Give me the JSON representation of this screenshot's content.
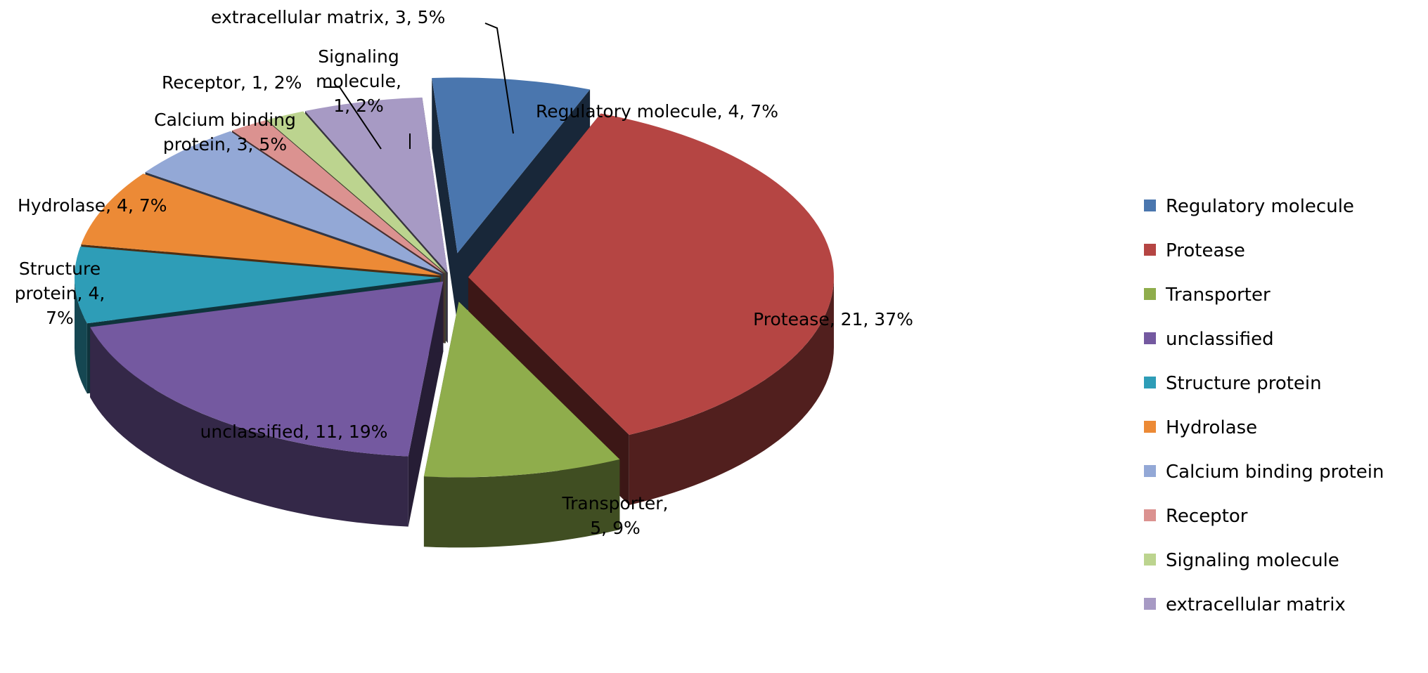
{
  "chart_data": {
    "type": "pie",
    "style": "3d-exploded",
    "title": "",
    "legend_position": "right",
    "slices": [
      {
        "name": "Regulatory molecule",
        "value": 4,
        "percent": "7%",
        "color": "#4a76ae",
        "label": [
          "Regulatory molecule, 4, 7%"
        ]
      },
      {
        "name": "Protease",
        "value": 21,
        "percent": "37%",
        "color": "#b54543",
        "label": [
          "Protease, 21, 37%"
        ]
      },
      {
        "name": "Transporter",
        "value": 5,
        "percent": "9%",
        "color": "#8fad4c",
        "label": [
          "Transporter,",
          "5, 9%"
        ]
      },
      {
        "name": "unclassified",
        "value": 11,
        "percent": "19%",
        "color": "#7459a0",
        "label": [
          "unclassified, 11, 19%"
        ]
      },
      {
        "name": "Structure protein",
        "value": 4,
        "percent": "7%",
        "color": "#2e9db7",
        "label": [
          "Structure",
          "protein, 4,",
          "7%"
        ]
      },
      {
        "name": "Hydrolase",
        "value": 4,
        "percent": "7%",
        "color": "#ec8a36",
        "label": [
          "Hydrolase, 4, 7%"
        ]
      },
      {
        "name": "Calcium binding protein",
        "value": 3,
        "percent": "5%",
        "color": "#93a8d6",
        "label": [
          "Calcium binding",
          "protein, 3, 5%"
        ]
      },
      {
        "name": "Receptor",
        "value": 1,
        "percent": "2%",
        "color": "#db9290",
        "label": [
          "Receptor,  1, 2%"
        ]
      },
      {
        "name": "Signaling molecule",
        "value": 1,
        "percent": "2%",
        "color": "#bcd48f",
        "label": [
          "Signaling",
          "molecule,",
          "1, 2%"
        ]
      },
      {
        "name": "extracellular matrix",
        "value": 3,
        "percent": "5%",
        "color": "#a79ac4",
        "label": [
          "extracellular matrix, 3, 5%"
        ]
      }
    ]
  }
}
